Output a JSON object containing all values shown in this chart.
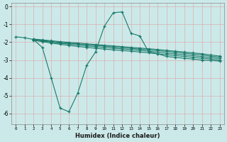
{
  "xlabel": "Humidex (Indice chaleur)",
  "x_main": [
    0,
    1,
    2,
    3,
    4,
    5,
    6,
    7,
    8,
    9,
    10,
    11,
    12,
    13,
    14,
    15,
    16,
    17,
    18,
    19,
    20,
    21,
    22,
    23
  ],
  "x_parallel": [
    2,
    3,
    4,
    5,
    6,
    7,
    8,
    9,
    10,
    11,
    12,
    13,
    14,
    15,
    16,
    17,
    18,
    19,
    20,
    21,
    22,
    23
  ],
  "line_main": [
    -1.7,
    -1.75,
    -1.85,
    -2.3,
    -4.0,
    -5.7,
    -5.9,
    -4.85,
    -3.3,
    -2.55,
    -1.1,
    -0.35,
    -0.3,
    -1.5,
    -1.65,
    -2.55,
    -2.65,
    -2.8,
    -2.85,
    -2.9,
    -2.95,
    -3.0,
    -3.03,
    -3.06
  ],
  "line1": [
    -1.82,
    -1.87,
    -1.92,
    -1.97,
    -2.01,
    -2.05,
    -2.09,
    -2.13,
    -2.17,
    -2.21,
    -2.25,
    -2.29,
    -2.33,
    -2.37,
    -2.41,
    -2.46,
    -2.51,
    -2.55,
    -2.6,
    -2.65,
    -2.72,
    -2.78
  ],
  "line2": [
    -1.84,
    -1.9,
    -1.96,
    -2.01,
    -2.06,
    -2.1,
    -2.14,
    -2.18,
    -2.22,
    -2.27,
    -2.31,
    -2.35,
    -2.39,
    -2.43,
    -2.48,
    -2.52,
    -2.57,
    -2.62,
    -2.67,
    -2.72,
    -2.79,
    -2.84
  ],
  "line3": [
    -1.87,
    -1.93,
    -2.0,
    -2.06,
    -2.11,
    -2.16,
    -2.21,
    -2.25,
    -2.3,
    -2.34,
    -2.38,
    -2.42,
    -2.46,
    -2.51,
    -2.56,
    -2.61,
    -2.66,
    -2.71,
    -2.76,
    -2.81,
    -2.87,
    -2.92
  ],
  "line4": [
    -1.9,
    -1.97,
    -2.05,
    -2.12,
    -2.18,
    -2.24,
    -2.29,
    -2.34,
    -2.39,
    -2.43,
    -2.47,
    -2.51,
    -2.55,
    -2.6,
    -2.65,
    -2.7,
    -2.75,
    -2.8,
    -2.85,
    -2.9,
    -2.95,
    -3.0
  ],
  "bg_color": "#cce9e9",
  "grid_color": "#d9b0b0",
  "line_color": "#1a7a6a",
  "ylim": [
    -6.6,
    0.2
  ],
  "xlim": [
    -0.5,
    23.5
  ]
}
